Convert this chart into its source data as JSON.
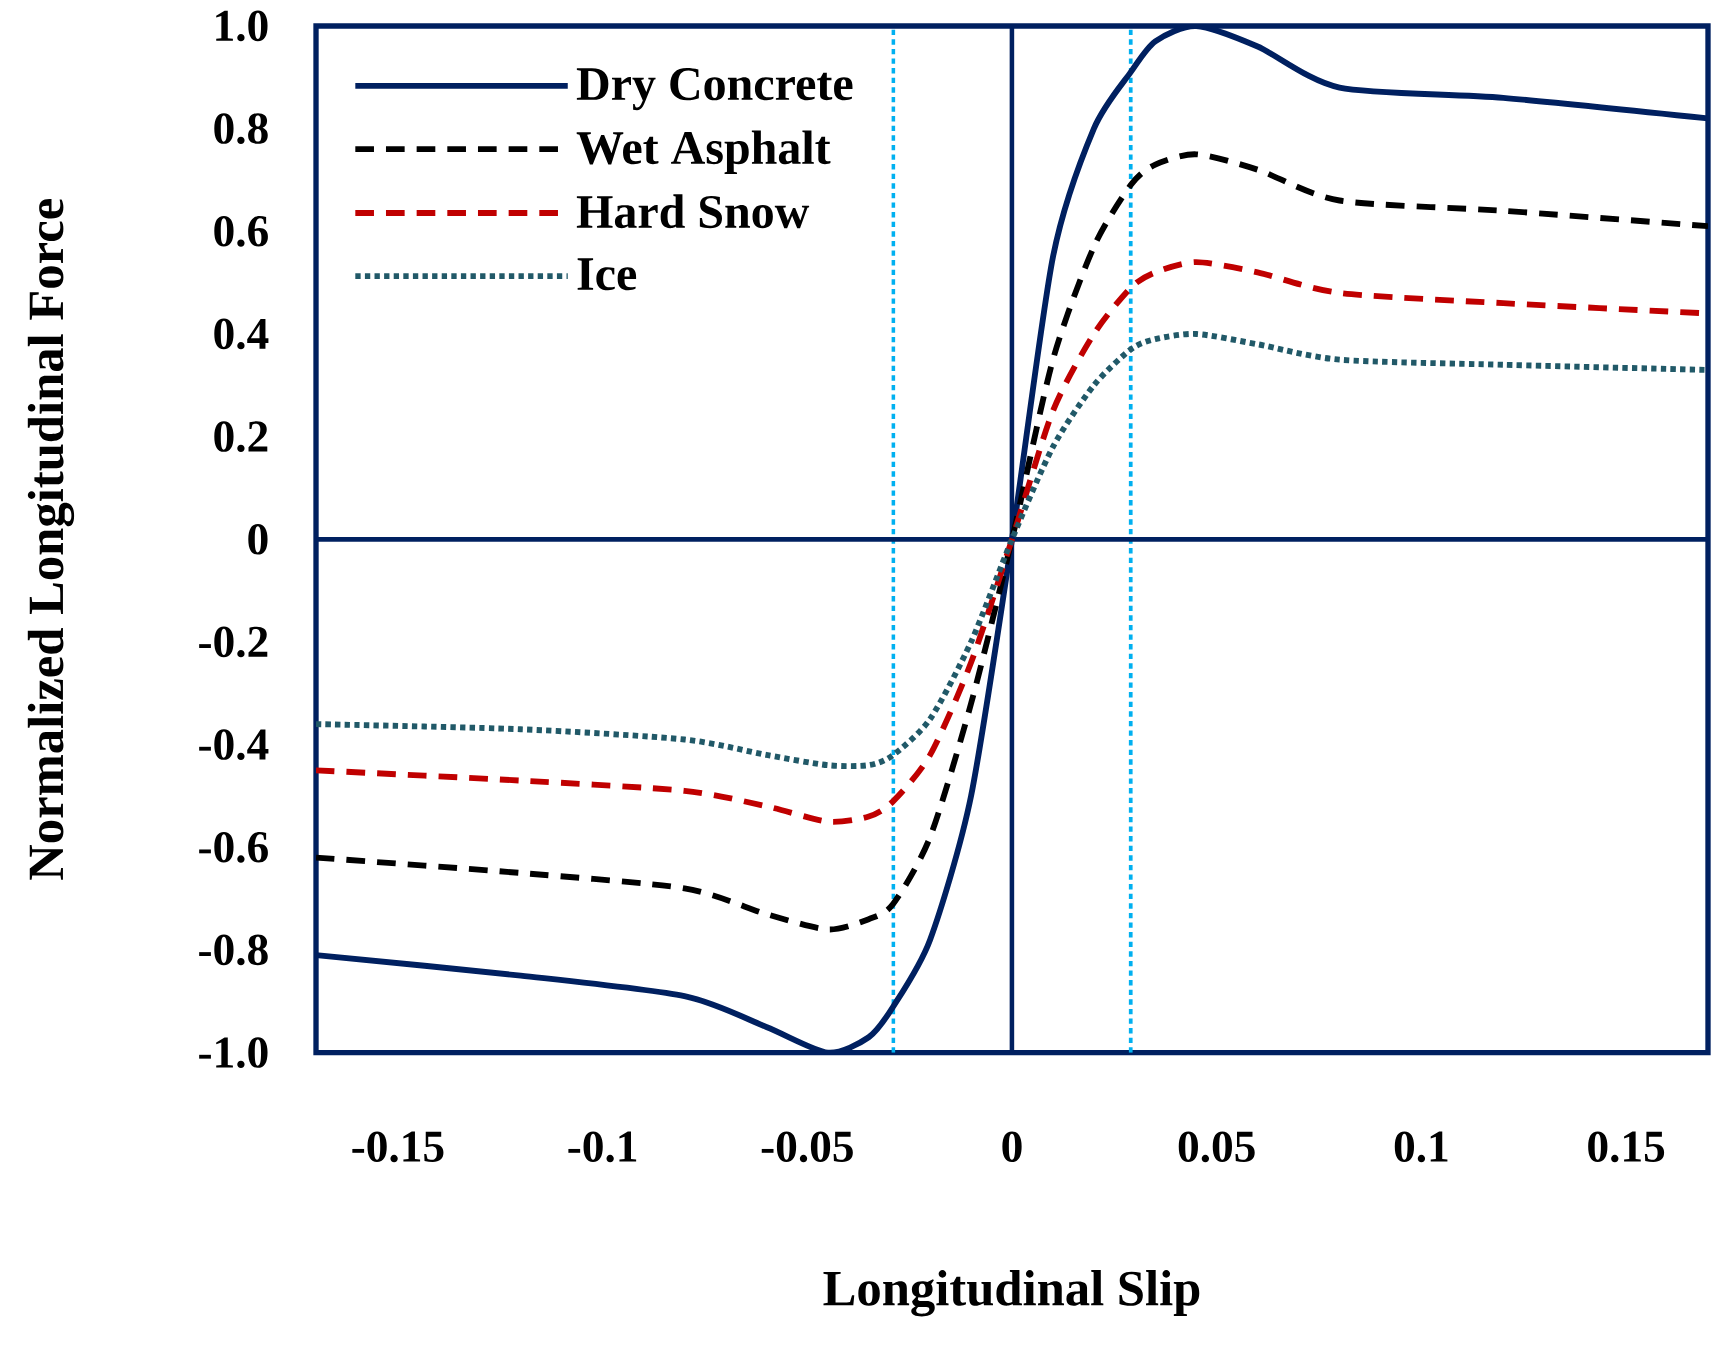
{
  "chart_data": {
    "type": "line",
    "xlabel": "Longitudinal Slip",
    "ylabel": "Normalized Longitudinal Force",
    "xlim": [
      -0.17,
      0.17
    ],
    "ylim": [
      -1,
      1
    ],
    "xticks": [
      -0.15,
      -0.1,
      -0.05,
      0,
      0.05,
      0.1,
      0.15
    ],
    "yticks": [
      {
        "value": 1,
        "label": "1.0"
      },
      0.8,
      0.6,
      0.4,
      0.2,
      0,
      -0.2,
      -0.4,
      -0.6,
      -0.8,
      {
        "value": -1,
        "label": "-1.0"
      }
    ],
    "grid": false,
    "legend": "top left",
    "x": [
      -0.17,
      -0.12,
      -0.08,
      -0.06,
      -0.045,
      -0.035,
      -0.029,
      -0.02,
      -0.01,
      0,
      0.01,
      0.02,
      0.029,
      0.035,
      0.045,
      0.06,
      0.08,
      0.12,
      0.17
    ],
    "series": [
      {
        "name": "Dry Concrete",
        "color": "#002060",
        "line_style": "solid",
        "values": [
          -0.81,
          -0.85,
          -0.89,
          -0.95,
          -1.0,
          -0.97,
          -0.91,
          -0.78,
          -0.5,
          0,
          0.55,
          0.8,
          0.91,
          0.97,
          1.0,
          0.96,
          0.88,
          0.86,
          0.82
        ]
      },
      {
        "name": "Wet Asphalt",
        "color": "#000000",
        "line_style": "dashed",
        "values": [
          -0.62,
          -0.65,
          -0.68,
          -0.73,
          -0.76,
          -0.74,
          -0.71,
          -0.58,
          -0.32,
          0,
          0.35,
          0.57,
          0.69,
          0.73,
          0.75,
          0.72,
          0.66,
          0.64,
          0.61
        ]
      },
      {
        "name": "Hard Snow",
        "color": "#c00000",
        "line_style": "dashed",
        "values": [
          -0.45,
          -0.47,
          -0.49,
          -0.52,
          -0.55,
          -0.54,
          -0.51,
          -0.42,
          -0.24,
          0,
          0.25,
          0.4,
          0.49,
          0.52,
          0.54,
          0.52,
          0.48,
          0.46,
          0.44
        ]
      },
      {
        "name": "Ice",
        "color": "#215968",
        "line_style": "dotted",
        "values": [
          -0.36,
          -0.37,
          -0.39,
          -0.42,
          -0.44,
          -0.44,
          -0.42,
          -0.35,
          -0.2,
          0,
          0.18,
          0.3,
          0.37,
          0.39,
          0.4,
          0.38,
          0.35,
          0.34,
          0.33
        ]
      }
    ],
    "ref_lines": [
      {
        "axis": "x",
        "value": -0.029,
        "color": "#00b0f0",
        "line_style": "dotted"
      },
      {
        "axis": "x",
        "value": 0.029,
        "color": "#00b0f0",
        "line_style": "dotted"
      },
      {
        "axis": "x",
        "value": 0,
        "color": "#002060",
        "line_style": "solid"
      },
      {
        "axis": "y",
        "value": 0,
        "color": "#002060",
        "line_style": "solid"
      }
    ]
  }
}
